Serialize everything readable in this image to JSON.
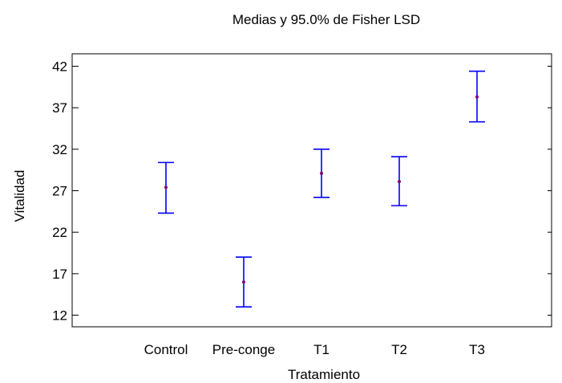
{
  "chart_data": {
    "type": "scatter",
    "title": "Medias y 95.0% de Fisher LSD",
    "xlabel": "Tratamiento",
    "ylabel": "Vitalidad",
    "categories": [
      "Control",
      "Pre-conge",
      "T1",
      "T2",
      "T3"
    ],
    "ylim": [
      10.6,
      43.5
    ],
    "yticks": [
      12,
      17,
      22,
      27,
      32,
      37,
      42
    ],
    "grid": false,
    "series": [
      {
        "means": [
          27.4,
          16.0,
          29.1,
          28.1,
          38.3
        ],
        "lower": [
          24.3,
          13.0,
          26.2,
          25.2,
          35.3
        ],
        "upper": [
          30.4,
          19.0,
          32.0,
          31.1,
          41.4
        ]
      }
    ],
    "colors": {
      "errorbar": "#0000ff",
      "point": "#800080"
    }
  }
}
